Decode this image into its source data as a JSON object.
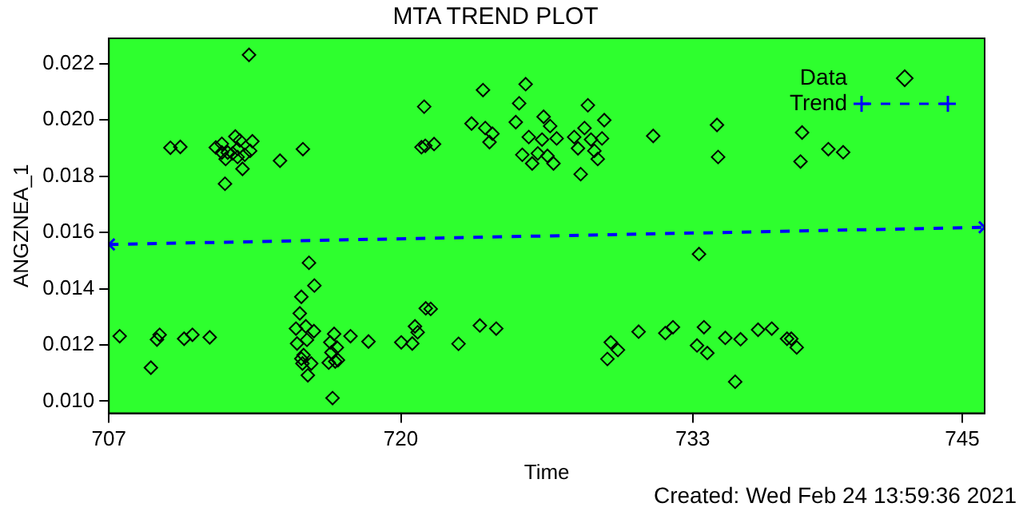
{
  "chart_data": {
    "type": "scatter",
    "title": "MTA TREND PLOT",
    "xlabel": "Time",
    "ylabel": "ANGZNEA_1",
    "xlim": [
      707,
      746
    ],
    "xticks": [
      707,
      720,
      733,
      745
    ],
    "ylim": [
      0.00957,
      0.0229
    ],
    "yticks": [
      {
        "value": 0.01,
        "label": "0.010"
      },
      {
        "value": 0.012,
        "label": "0.012"
      },
      {
        "value": 0.014,
        "label": "0.014"
      },
      {
        "value": 0.016,
        "label": "0.016"
      },
      {
        "value": 0.018,
        "label": "0.018"
      },
      {
        "value": 0.02,
        "label": "0.020"
      },
      {
        "value": 0.022,
        "label": "0.022"
      }
    ],
    "grid": false,
    "legend": "top right",
    "annotations": [
      "Created: Wed Feb 24 13:59:36 2021"
    ],
    "series": [
      {
        "name": "Data",
        "type": "scatter",
        "marker": "diamond",
        "color": "#000000",
        "x": [
          713.24,
          711.76,
          712.03,
          712.73,
          714.62,
          715.64,
          709.74,
          710.18,
          712.03,
          712.63,
          712.83,
          713.39,
          712.29,
          712.51,
          713.05,
          713.29,
          712.2,
          712.95,
          712.17,
          712.73,
          721.04,
          720.92,
          721.09,
          721.48,
          723.66,
          725.56,
          725.27,
          723.15,
          723.76,
          724.08,
          723.95,
          725.12,
          726.36,
          726.65,
          725.7,
          726.29,
          726.94,
          725.41,
          726.1,
          726.53,
          725.85,
          726.8,
          728.33,
          729.06,
          728.18,
          727.72,
          728.47,
          728.96,
          727.89,
          728.62,
          728.77,
          728.01,
          731.24,
          734.08,
          734.13,
          737.87,
          737.8,
          739.04,
          739.7,
          707.48,
          708.87,
          709.14,
          709.26,
          710.35,
          710.72,
          711.49,
          715.91,
          716.15,
          715.57,
          715.5,
          715.33,
          715.77,
          716.13,
          715.38,
          715.82,
          715.67,
          715.62,
          716.01,
          715.57,
          715.86,
          717.03,
          717.76,
          718.56,
          716.86,
          717.15,
          716.91,
          716.79,
          717.08,
          717.2,
          716.96,
          720.02,
          720.51,
          720.63,
          720.75,
          721.11,
          733.28,
          721.33,
          723.52,
          724.25,
          722.57,
          730.59,
          729.35,
          729.67,
          729.2,
          731.78,
          732.12,
          733.5,
          733.19,
          733.65,
          734.45,
          735.13,
          734.89,
          735.91,
          736.52,
          737.2,
          737.39,
          737.63
        ],
        "values": [
          0.02231,
          0.01902,
          0.01884,
          0.01897,
          0.01855,
          0.01896,
          0.01901,
          0.01904,
          0.01915,
          0.01941,
          0.01927,
          0.01924,
          0.01884,
          0.01881,
          0.01876,
          0.0189,
          0.01861,
          0.01826,
          0.01773,
          0.01868,
          0.02047,
          0.01903,
          0.01908,
          0.01914,
          0.02106,
          0.02127,
          0.02059,
          0.01987,
          0.01971,
          0.01951,
          0.01921,
          0.01992,
          0.02011,
          0.01978,
          0.01939,
          0.0193,
          0.01934,
          0.01876,
          0.01881,
          0.01872,
          0.01845,
          0.01845,
          0.02052,
          0.01999,
          0.01971,
          0.01939,
          0.0193,
          0.01934,
          0.01899,
          0.0189,
          0.01861,
          0.01807,
          0.01943,
          0.01982,
          0.01868,
          0.01955,
          0.01852,
          0.01896,
          0.01885,
          0.01231,
          0.01119,
          0.01219,
          0.01236,
          0.01222,
          0.01236,
          0.01227,
          0.01492,
          0.01411,
          0.01371,
          0.01312,
          0.01258,
          0.01266,
          0.01249,
          0.01205,
          0.01218,
          0.01164,
          0.01134,
          0.01134,
          0.01151,
          0.01092,
          0.01239,
          0.01231,
          0.01212,
          0.01209,
          0.01191,
          0.01173,
          0.01137,
          0.01141,
          0.01146,
          0.01011,
          0.01209,
          0.01205,
          0.01266,
          0.01245,
          0.0133,
          0.01523,
          0.01328,
          0.01269,
          0.01258,
          0.01204,
          0.01247,
          0.01209,
          0.01182,
          0.0115,
          0.01242,
          0.01263,
          0.01263,
          0.01198,
          0.01171,
          0.01225,
          0.0122,
          0.01069,
          0.01254,
          0.01258,
          0.01222,
          0.01222,
          0.01191
        ]
      },
      {
        "name": "Trend",
        "type": "line",
        "marker": "cross",
        "line_style": "dashed",
        "color": "#0000ff",
        "x": [
          707,
          746
        ],
        "values": [
          0.01557,
          0.01618
        ]
      }
    ]
  }
}
